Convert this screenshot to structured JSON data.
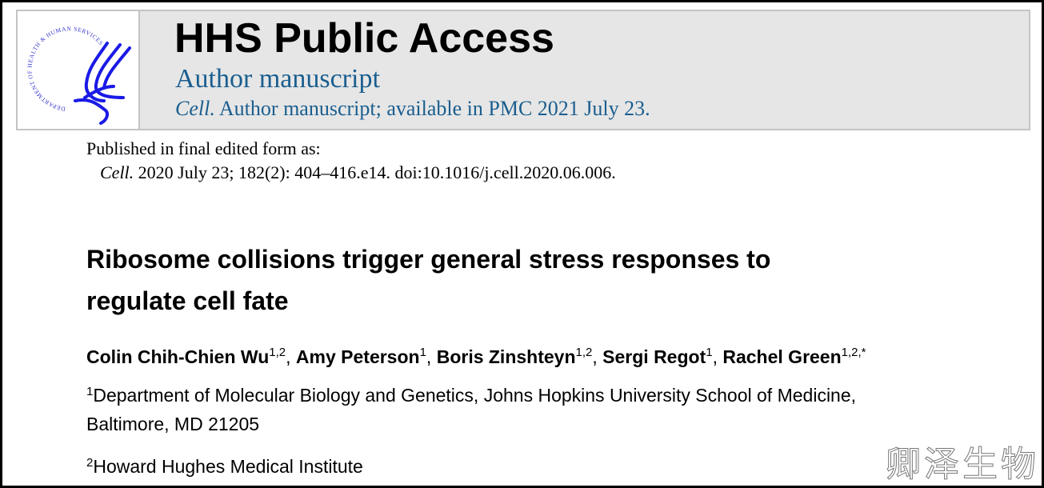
{
  "header": {
    "logo_text": "DEPARTMENT OF HEALTH & HUMAN SERVICES · USA",
    "title": "HHS Public Access",
    "subtitle": "Author manuscript",
    "journal": "Cell.",
    "availability": " Author manuscript; available in PMC 2021 July 23."
  },
  "publication": {
    "label": "Published in final edited form as:",
    "journal": "Cell.",
    "citation": " 2020 July 23; 182(2): 404–416.e14. doi:10.1016/j.cell.2020.06.006."
  },
  "article": {
    "title_line1": "Ribosome collisions trigger general stress responses to",
    "title_line2": "regulate cell fate",
    "authors": [
      {
        "name": "Colin Chih-Chien Wu",
        "aff": "1,2",
        "sep": ", "
      },
      {
        "name": "Amy Peterson",
        "aff": "1",
        "sep": ", "
      },
      {
        "name": "Boris Zinshteyn",
        "aff": "1,2",
        "sep": ", "
      },
      {
        "name": "Sergi Regot",
        "aff": "1",
        "sep": ", "
      },
      {
        "name": "Rachel Green",
        "aff": "1,2,*",
        "sep": ""
      }
    ],
    "affiliations": [
      {
        "num": "1",
        "line1": "Department of Molecular Biology and Genetics, Johns Hopkins University School of Medicine,",
        "line2": "Baltimore, MD 21205"
      },
      {
        "num": "2",
        "line1": "Howard Hughes Medical Institute"
      }
    ]
  },
  "watermark": "卿泽生物",
  "colors": {
    "header_blue": "#1a5e8f",
    "logo_blue": "#1a1ae6",
    "header_bg": "#e6e6e6"
  }
}
